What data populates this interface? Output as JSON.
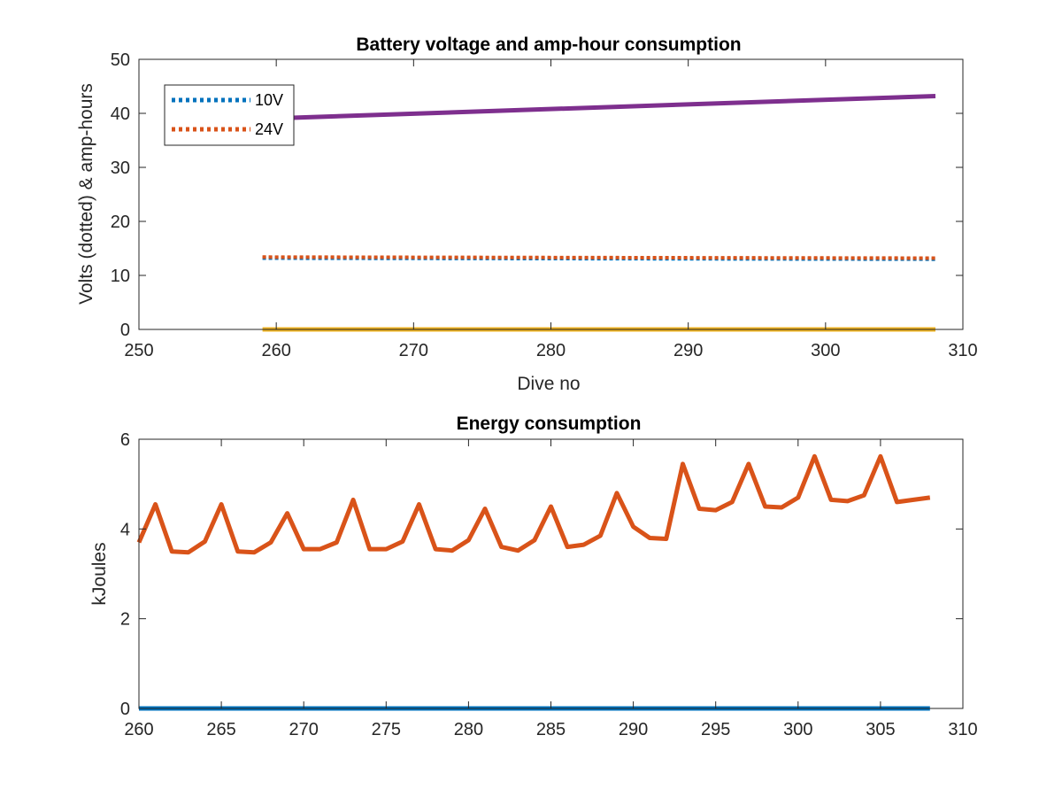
{
  "chart_data": [
    {
      "type": "line",
      "title": "Battery voltage and amp-hour consumption",
      "xlabel": "Dive no",
      "ylabel": "Volts (dotted) & amp-hours",
      "xlim": [
        250,
        310
      ],
      "ylim": [
        0,
        50
      ],
      "xticks": [
        250,
        260,
        270,
        280,
        290,
        300,
        310
      ],
      "yticks": [
        0,
        10,
        20,
        30,
        40,
        50
      ],
      "legend_position": "top-left",
      "colors": {
        "10V": "#0072BD",
        "24V": "#D95319",
        "amp_hours_24V": "#7E2F8E",
        "amp_hours_10V": "#EDB120"
      },
      "series": [
        {
          "name": "10V",
          "style": "dotted",
          "x": [
            259,
            308
          ],
          "y": [
            13.2,
            13.0
          ]
        },
        {
          "name": "24V",
          "style": "dotted",
          "x": [
            259,
            308
          ],
          "y": [
            13.4,
            13.2
          ]
        },
        {
          "style": "solid",
          "x": [
            259,
            308
          ],
          "y": [
            39.0,
            43.2
          ]
        },
        {
          "style": "solid",
          "x": [
            259,
            308
          ],
          "y": [
            0,
            0
          ]
        }
      ]
    },
    {
      "type": "line",
      "title": "Energy consumption",
      "xlabel": "",
      "ylabel": "kJoules",
      "xlim": [
        260,
        310
      ],
      "ylim": [
        0,
        6
      ],
      "xticks": [
        260,
        265,
        270,
        275,
        280,
        285,
        290,
        295,
        300,
        305,
        310
      ],
      "yticks": [
        0,
        2,
        4,
        6
      ],
      "colors": {
        "energy_24V": "#D95319",
        "energy_10V": "#0072BD"
      },
      "series": [
        {
          "style": "solid",
          "x": [
            260,
            261,
            262,
            263,
            264,
            265,
            266,
            267,
            268,
            269,
            270,
            271,
            272,
            273,
            274,
            275,
            276,
            277,
            278,
            279,
            280,
            281,
            282,
            283,
            284,
            285,
            286,
            287,
            288,
            289,
            290,
            291,
            292,
            293,
            294,
            295,
            296,
            297,
            298,
            299,
            300,
            301,
            302,
            303,
            304,
            305,
            306,
            307,
            308
          ],
          "y": [
            3.7,
            4.55,
            3.5,
            3.48,
            3.72,
            4.55,
            3.5,
            3.48,
            3.7,
            4.35,
            3.55,
            3.55,
            3.7,
            4.65,
            3.55,
            3.55,
            3.72,
            4.55,
            3.55,
            3.52,
            3.75,
            4.45,
            3.6,
            3.52,
            3.75,
            4.5,
            3.6,
            3.65,
            3.85,
            4.8,
            4.05,
            3.8,
            3.78,
            5.45,
            4.45,
            4.42,
            4.6,
            5.45,
            4.5,
            4.48,
            4.7,
            5.62,
            4.65,
            4.62,
            4.75,
            5.62,
            4.6,
            4.65,
            4.7
          ]
        },
        {
          "style": "solid",
          "x": [
            260,
            308
          ],
          "y": [
            0,
            0
          ]
        }
      ]
    }
  ]
}
